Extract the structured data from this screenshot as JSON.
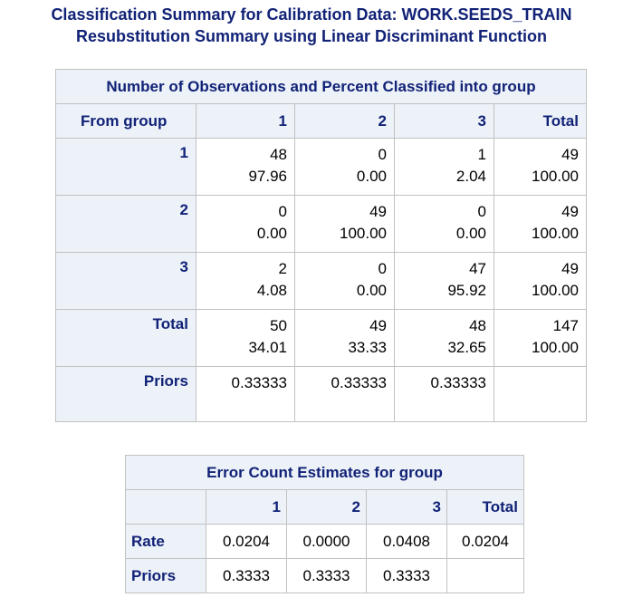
{
  "titles": {
    "line1": "Classification Summary for Calibration Data: WORK.SEEDS_TRAIN",
    "line2": "Resubstitution Summary using Linear Discriminant Function"
  },
  "main_table": {
    "caption": "Number of Observations and Percent Classified into group",
    "from_label": "From group",
    "columns": [
      "1",
      "2",
      "3",
      "Total"
    ],
    "rows": [
      {
        "label": "1",
        "cells": [
          [
            "48",
            "97.96"
          ],
          [
            "0",
            "0.00"
          ],
          [
            "1",
            "2.04"
          ],
          [
            "49",
            "100.00"
          ]
        ]
      },
      {
        "label": "2",
        "cells": [
          [
            "0",
            "0.00"
          ],
          [
            "49",
            "100.00"
          ],
          [
            "0",
            "0.00"
          ],
          [
            "49",
            "100.00"
          ]
        ]
      },
      {
        "label": "3",
        "cells": [
          [
            "2",
            "4.08"
          ],
          [
            "0",
            "0.00"
          ],
          [
            "47",
            "95.92"
          ],
          [
            "49",
            "100.00"
          ]
        ]
      },
      {
        "label": "Total",
        "cells": [
          [
            "50",
            "34.01"
          ],
          [
            "49",
            "33.33"
          ],
          [
            "48",
            "32.65"
          ],
          [
            "147",
            "100.00"
          ]
        ]
      }
    ],
    "priors": {
      "label": "Priors",
      "values": [
        "0.33333",
        "0.33333",
        "0.33333",
        ""
      ]
    }
  },
  "error_table": {
    "caption": "Error Count Estimates for group",
    "columns": [
      "1",
      "2",
      "3",
      "Total"
    ],
    "rate": {
      "label": "Rate",
      "values": [
        "0.0204",
        "0.0000",
        "0.0408",
        "0.0204"
      ]
    },
    "priors": {
      "label": "Priors",
      "values": [
        "0.3333",
        "0.3333",
        "0.3333",
        ""
      ]
    }
  },
  "colors": {
    "header_bg": "#edf2f9",
    "header_text": "#112277",
    "border": "#c1c1c1"
  }
}
